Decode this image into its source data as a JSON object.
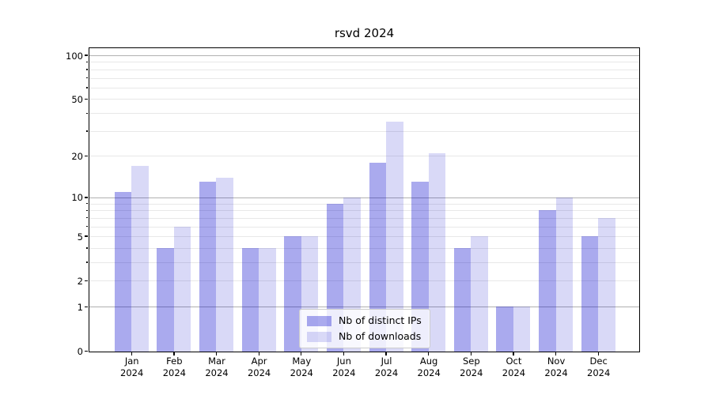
{
  "chart_data": {
    "type": "bar",
    "title": "rsvd 2024",
    "categories": [
      "Jan",
      "Feb",
      "Mar",
      "Apr",
      "May",
      "Jun",
      "Jul",
      "Aug",
      "Sep",
      "Oct",
      "Nov",
      "Dec"
    ],
    "category_year": "2024",
    "series": [
      {
        "name": "Nb of distinct IPs",
        "color": "rgba(0,0,204,0.335)",
        "values": [
          11,
          4,
          13,
          4,
          5,
          9,
          18,
          13,
          4,
          1,
          8,
          5
        ]
      },
      {
        "name": "Nb of downloads",
        "color": "rgba(0,0,204,0.15)",
        "values": [
          17,
          6,
          14,
          4,
          5,
          10,
          35,
          21,
          5,
          1,
          10,
          7
        ]
      }
    ],
    "yscale": "log1p",
    "ylim": [
      0,
      112.6
    ],
    "y_ticks": [
      0,
      1,
      2,
      5,
      10,
      20,
      50,
      100
    ],
    "y_major_gridlines": [
      1,
      10,
      100
    ],
    "y_minor_gridlines": [
      2,
      3,
      4,
      5,
      6,
      7,
      8,
      9,
      20,
      30,
      40,
      50,
      60,
      70,
      80,
      90
    ],
    "y_minor_ticks": [
      3,
      4,
      6,
      7,
      8,
      9,
      30,
      40,
      60,
      70,
      80,
      90
    ],
    "legend": {
      "position": "lower center",
      "entries": [
        "Nb of distinct IPs",
        "Nb of downloads"
      ]
    },
    "colors": {
      "bar_base": "#0000cc",
      "major_grid": "#b0b0b0",
      "minor_grid": "#e8e8e8",
      "axis": "#000000",
      "legend_border": "#cccccc"
    }
  }
}
